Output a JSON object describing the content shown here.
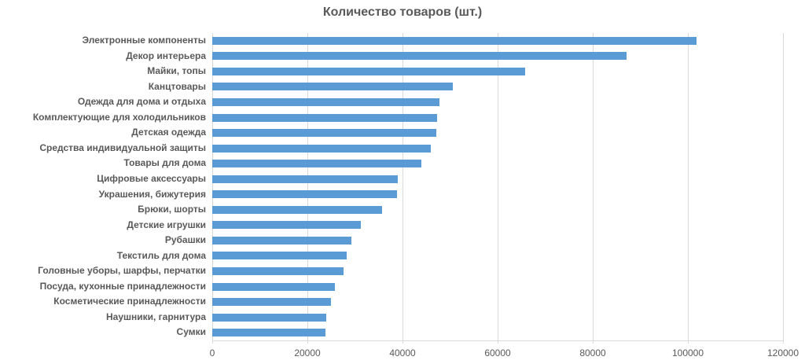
{
  "chart_data": {
    "type": "bar",
    "orientation": "horizontal",
    "title": "Количество товаров (шт.)",
    "categories": [
      "Электронные компоненты",
      "Декор интерьера",
      "Майки, топы",
      "Канцтовары",
      "Одежда для дома и отдыха",
      "Комплектующие для холодильников",
      "Детская одежда",
      "Средства индивидуальной защиты",
      "Товары для дома",
      "Цифровые аксессуары",
      "Украшения, бижутерия",
      "Брюки, шорты",
      "Детские игрушки",
      "Рубашки",
      "Текстиль для дома",
      "Головные уборы, шарфы, перчатки",
      "Посуда, кухонные принадлежности",
      "Косметические принадлежности",
      "Наушники, гарнитура",
      "Сумки"
    ],
    "values": [
      101800,
      87100,
      65800,
      50500,
      47800,
      47300,
      47100,
      46000,
      44000,
      39000,
      38800,
      35700,
      31200,
      29300,
      28200,
      27600,
      25800,
      24900,
      23900,
      23800
    ],
    "xlabel": "",
    "ylabel": "",
    "xlim": [
      0,
      120000
    ],
    "xticks": [
      0,
      20000,
      40000,
      60000,
      80000,
      100000,
      120000
    ],
    "grid": true,
    "legend": false,
    "colors": {
      "bar": "#5b9bd5",
      "gridline": "#d9d9d9",
      "text": "#595959",
      "background": "#ffffff"
    }
  }
}
